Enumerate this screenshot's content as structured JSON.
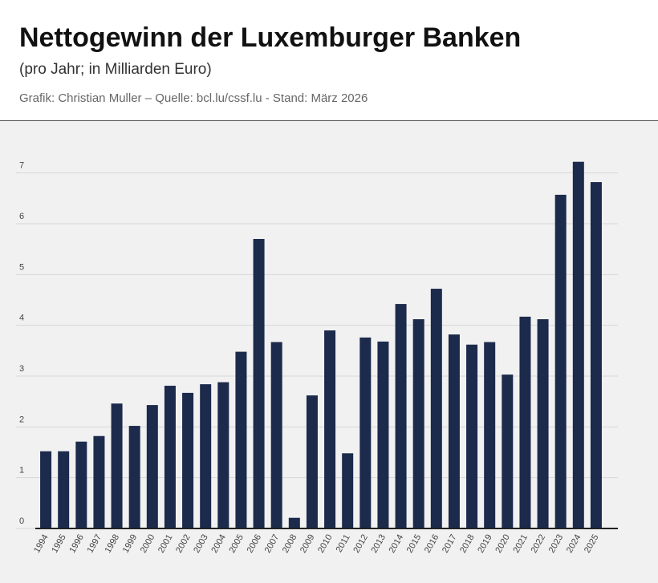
{
  "chart_data": {
    "type": "bar",
    "title": "Nettogewinn der Luxemburger Banken",
    "subtitle": "(pro Jahr; in Milliarden Euro)",
    "credit": "Grafik: Christian Muller – Quelle: bcl.lu/cssf.lu - Stand: März 2026",
    "categories": [
      "1994",
      "1995",
      "1996",
      "1997",
      "1998",
      "1999",
      "2000",
      "2001",
      "2002",
      "2003",
      "2004",
      "2005",
      "2006",
      "2007",
      "2008",
      "2009",
      "2010",
      "2011",
      "2012",
      "2013",
      "2014",
      "2015",
      "2016",
      "2017",
      "2018",
      "2019",
      "2020",
      "2021",
      "2022",
      "2023",
      "2024",
      "2025"
    ],
    "values": [
      1.52,
      1.52,
      1.71,
      1.82,
      2.46,
      2.02,
      2.43,
      2.81,
      2.67,
      2.84,
      2.88,
      3.48,
      5.7,
      3.67,
      0.21,
      2.62,
      3.9,
      1.48,
      3.76,
      3.68,
      4.42,
      4.12,
      4.72,
      3.82,
      3.62,
      3.67,
      3.03,
      4.17,
      4.12,
      6.57,
      7.22,
      6.82
    ],
    "color": "#1c2a4c",
    "ylim": [
      0,
      7.5
    ],
    "yticks": [
      0,
      1,
      2,
      3,
      4,
      5,
      6,
      7
    ],
    "grid": true
  }
}
